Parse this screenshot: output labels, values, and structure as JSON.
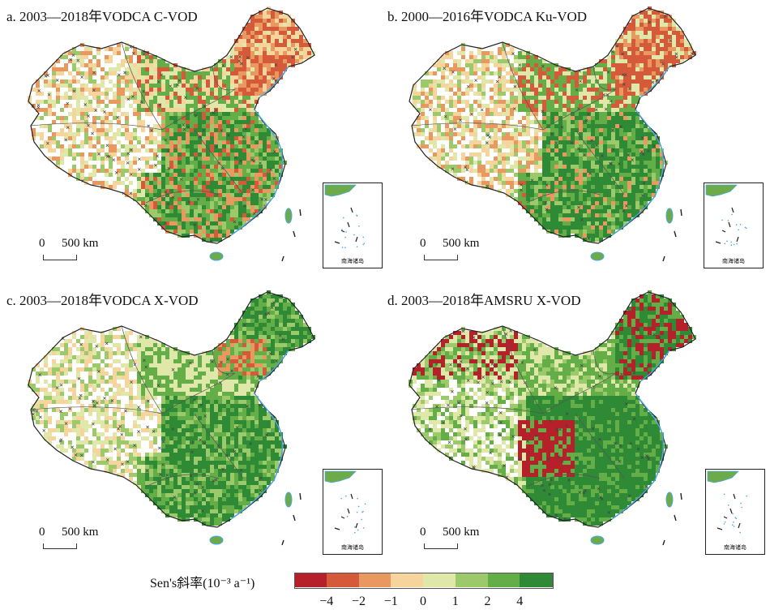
{
  "panels": [
    {
      "title": "a. 2003—2018年VODCA C-VOD",
      "scale_zero": "0",
      "scale_value": "500 km",
      "inset_label": "南海诸岛",
      "pattern": "mixed"
    },
    {
      "title": "b. 2000—2016年VODCA Ku-VOD",
      "scale_zero": "0",
      "scale_value": "500 km",
      "inset_label": "南海诸岛",
      "pattern": "greener"
    },
    {
      "title": "c. 2003—2018年VODCA X-VOD",
      "scale_zero": "0",
      "scale_value": "500 km",
      "inset_label": "南海诸岛",
      "pattern": "green-ne"
    },
    {
      "title": "d. 2003—2018年AMSRU X-VOD",
      "scale_zero": "0",
      "scale_value": "500 km",
      "inset_label": "南海诸岛",
      "pattern": "strong"
    }
  ],
  "legend": {
    "title": "Sen's斜率(10⁻³ a⁻¹)",
    "colors": [
      "#b5202a",
      "#d45a3a",
      "#e9995f",
      "#f6d49b",
      "#dfe8a8",
      "#9cc96a",
      "#64ae48",
      "#2f8a36"
    ],
    "ticks": [
      "−4",
      "−2",
      "−1",
      "0",
      "1",
      "2",
      "4"
    ]
  }
}
